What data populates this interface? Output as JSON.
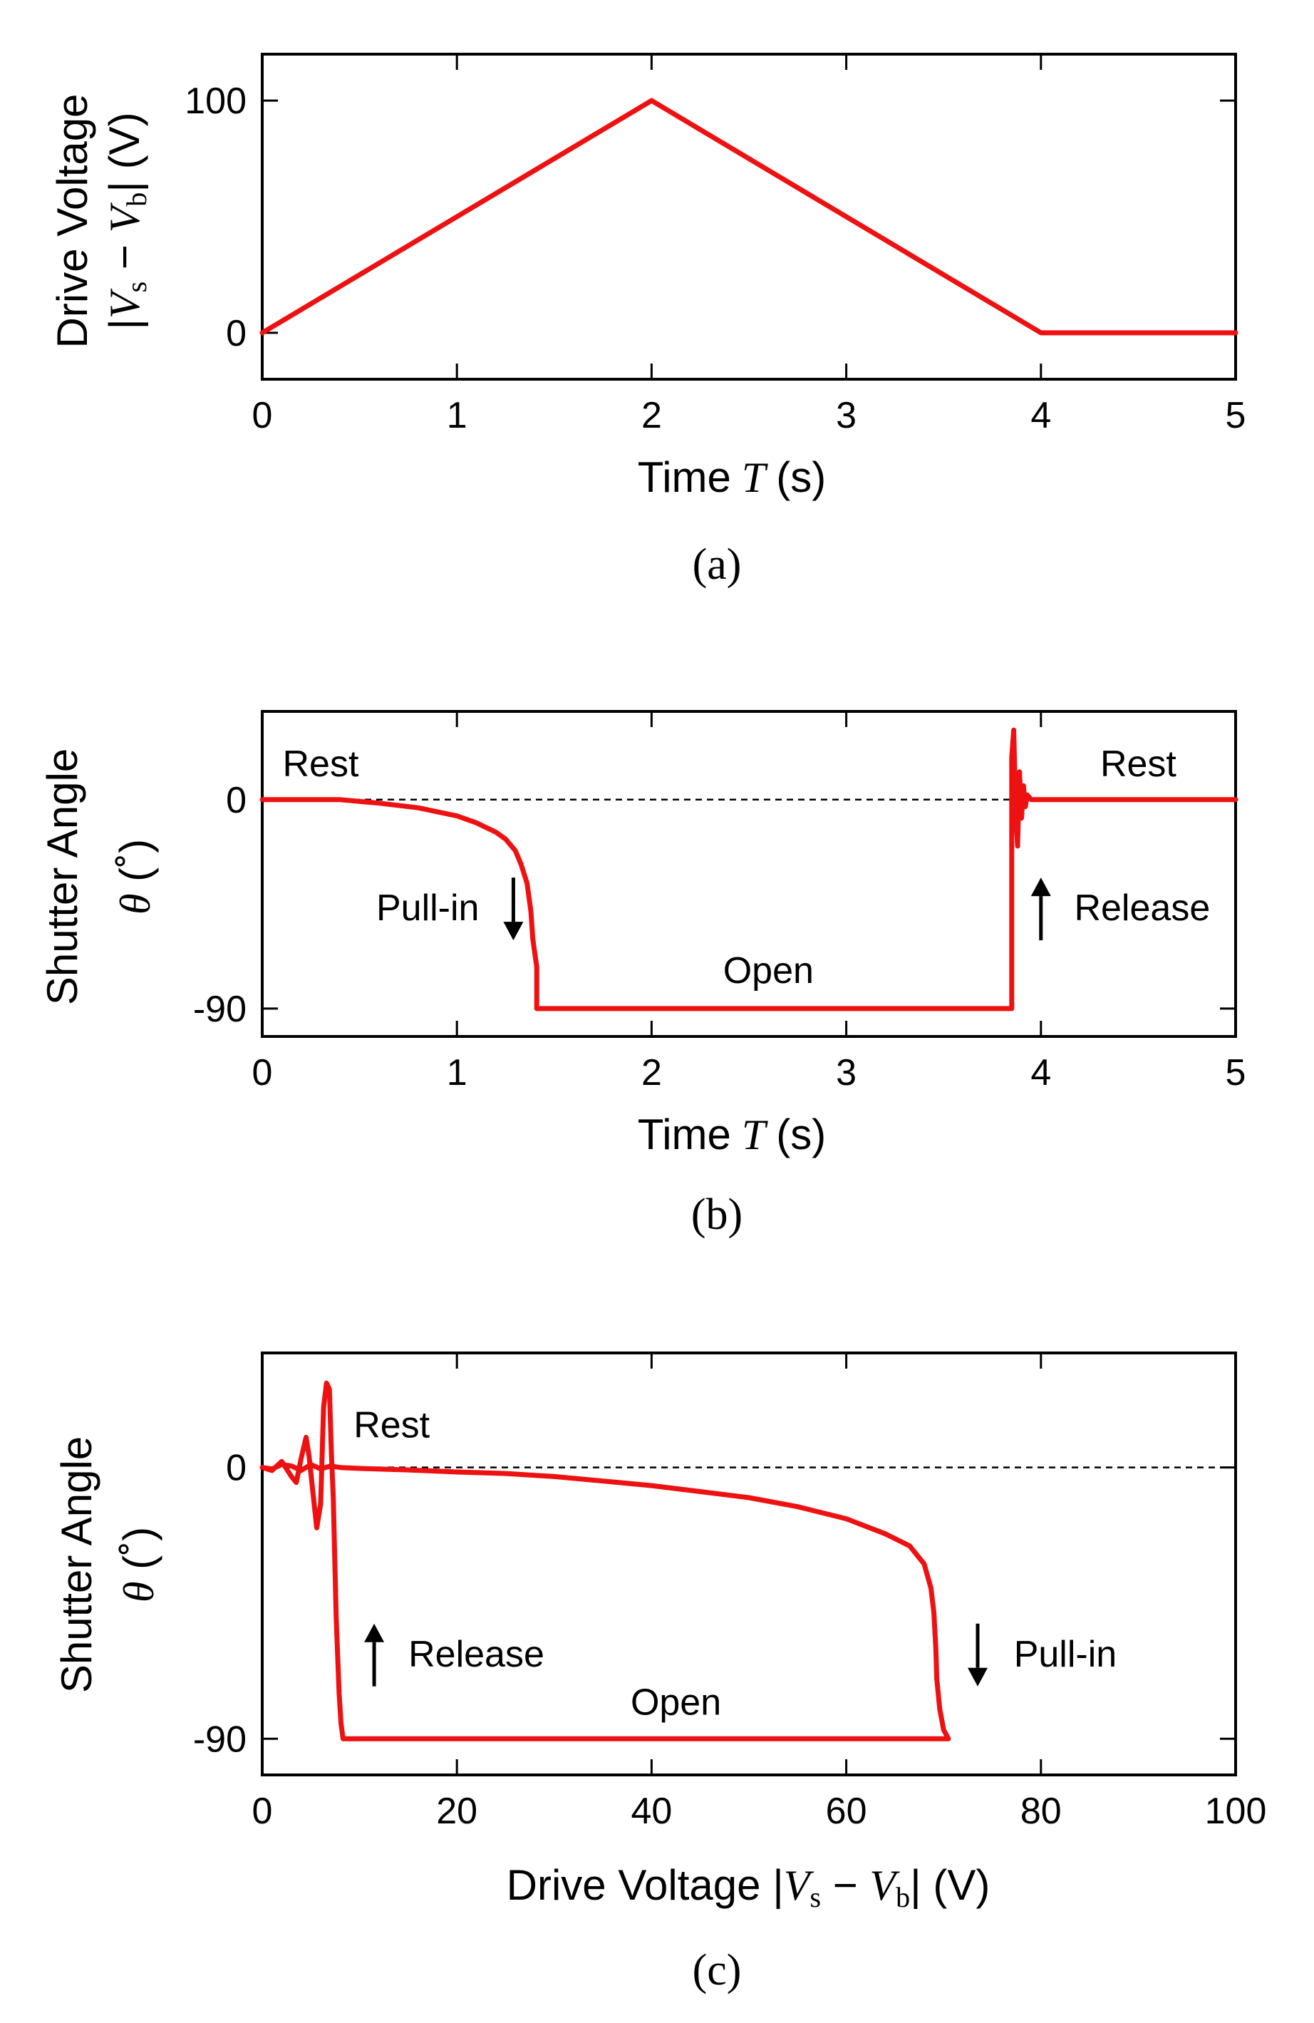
{
  "colors": {
    "series": "#ee1111",
    "axis": "#000000",
    "background": "#ffffff"
  },
  "chart_data": [
    {
      "type": "line",
      "caption": "(a)",
      "xlabel": {
        "prefix": "Time",
        "symbol": "T",
        "unit": "(s)"
      },
      "ylabel": {
        "line1": "Drive Voltage",
        "abs_open": "|",
        "v": "V",
        "s": "s",
        "minus": " − ",
        "b": "b",
        "abs_close": "|",
        "unit": " (V)"
      },
      "xlim": [
        0,
        5
      ],
      "ylim": [
        -20,
        120
      ],
      "xticks": [
        0,
        1,
        2,
        3,
        4,
        5
      ],
      "xtick_labels": [
        "0",
        "1",
        "2",
        "3",
        "4",
        "5"
      ],
      "yticks": [
        0,
        100
      ],
      "ytick_labels": [
        "0",
        "100"
      ],
      "series": [
        {
          "name": "drive voltage",
          "x": [
            0,
            2,
            4,
            5
          ],
          "y": [
            0,
            100,
            0,
            0
          ]
        }
      ],
      "annotations": []
    },
    {
      "type": "line",
      "caption": "(b)",
      "xlabel": {
        "prefix": "Time",
        "symbol": "T",
        "unit": "(s)"
      },
      "ylabel": {
        "line1": "Shutter Angle",
        "symbol": "θ",
        "unit": " (˚)"
      },
      "xlim": [
        0,
        5
      ],
      "ylim": [
        -102,
        38
      ],
      "xticks": [
        0,
        1,
        2,
        3,
        4,
        5
      ],
      "xtick_labels": [
        "0",
        "1",
        "2",
        "3",
        "4",
        "5"
      ],
      "yticks": [
        0,
        -90
      ],
      "ytick_labels": [
        "0",
        "-90"
      ],
      "reference_line": 0,
      "series": [
        {
          "name": "shutter angle",
          "x": [
            0,
            0.4,
            0.6,
            0.8,
            1.0,
            1.1,
            1.2,
            1.25,
            1.3,
            1.33,
            1.36,
            1.38,
            1.39,
            1.41,
            1.41,
            3.85,
            3.85,
            3.86,
            3.87,
            3.88,
            3.89,
            3.9,
            3.91,
            3.92,
            3.93,
            3.95,
            3.98,
            5
          ],
          "y": [
            0,
            0,
            -1.5,
            -3.5,
            -7,
            -10,
            -14,
            -17,
            -22,
            -28,
            -36,
            -48,
            -60,
            -72,
            -90,
            -90,
            18,
            30,
            -5,
            -20,
            12,
            -8,
            6,
            -3,
            2,
            0,
            0,
            0
          ]
        }
      ],
      "annotations": [
        {
          "text": "Rest",
          "x": 0.3,
          "y": 10
        },
        {
          "text": "Rest",
          "x": 4.5,
          "y": 10
        },
        {
          "text": "Pull-in",
          "x": 0.85,
          "y": -52,
          "arrow": "down",
          "arrow_x": 1.29
        },
        {
          "text": "Release",
          "x": 4.52,
          "y": -52,
          "arrow": "up",
          "arrow_x": 4.0
        },
        {
          "text": "Open",
          "x": 2.6,
          "y": -79
        }
      ]
    },
    {
      "type": "line",
      "caption": "(c)",
      "xlabel": {
        "prefix": "Drive Voltage ",
        "abs_open": "|",
        "v": "V",
        "s": "s",
        "minus": " − ",
        "b": "b",
        "abs_close": "|",
        "unit": " (V)"
      },
      "ylabel": {
        "line1": "Shutter Angle",
        "symbol": "θ",
        "unit": " (˚)"
      },
      "xlim": [
        0,
        100
      ],
      "ylim": [
        -102,
        38
      ],
      "xticks": [
        0,
        20,
        40,
        60,
        80,
        100
      ],
      "xtick_labels": [
        "0",
        "20",
        "40",
        "60",
        "80",
        "100"
      ],
      "yticks": [
        0,
        -90
      ],
      "ytick_labels": [
        "0",
        "-90"
      ],
      "reference_line": 0,
      "series": [
        {
          "name": "shutter angle vs voltage",
          "x": [
            0,
            1,
            2,
            3,
            3.5,
            4,
            4.5,
            4.8,
            5.2,
            5.6,
            6,
            6.3,
            6.6,
            6.9,
            7.1,
            7.3,
            7.6,
            7.9,
            8.1,
            8.3,
            8.3,
            70.5,
            70.5,
            70.0,
            69.6,
            69.3,
            69.2,
            69.0,
            68.7,
            68.0,
            66.5,
            64.0,
            60.0,
            55.0,
            50.0,
            45.0,
            40.0,
            35.0,
            30.0,
            25.0,
            20.0,
            15.0,
            10.0,
            8.0,
            7.0,
            6.0,
            5.0,
            4.0,
            3.0,
            2.0,
            1.0,
            0
          ],
          "y": [
            0,
            -1,
            2,
            -3,
            -5,
            3,
            10,
            4,
            -8,
            -20,
            -12,
            20,
            28,
            26,
            5,
            -10,
            -50,
            -75,
            -85,
            -90,
            -90,
            -90,
            -90,
            -87,
            -80,
            -70,
            -60,
            -48,
            -40,
            -32,
            -26,
            -22,
            -17,
            -13,
            -10,
            -8,
            -6,
            -4.5,
            -3,
            -2,
            -1.5,
            -0.8,
            -0.3,
            0,
            0.5,
            -0.5,
            1,
            -1,
            0.5,
            1,
            -0.5,
            0
          ]
        }
      ],
      "annotations": [
        {
          "text": "Rest",
          "x": 13.3,
          "y": 10
        },
        {
          "text": "Release",
          "x": 22,
          "y": -66,
          "arrow": "up",
          "arrow_x": 11.5
        },
        {
          "text": "Pull-in",
          "x": 82.5,
          "y": -66,
          "arrow": "down",
          "arrow_x": 73.5
        },
        {
          "text": "Open",
          "x": 42.5,
          "y": -82
        }
      ]
    }
  ]
}
